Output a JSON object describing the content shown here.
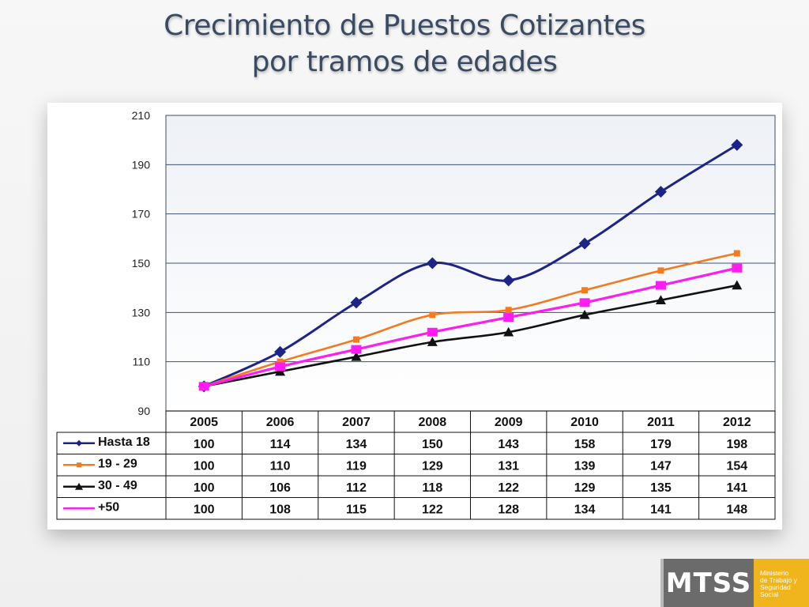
{
  "title": {
    "line1": "Crecimiento de Puestos Cotizantes",
    "line2": "por tramos de edades"
  },
  "chart_data": {
    "type": "line",
    "y_ticks": [
      "90",
      "110",
      "130",
      "150",
      "170",
      "190",
      "210"
    ],
    "ylim": [
      90,
      210
    ],
    "categories": [
      "2005",
      "2006",
      "2007",
      "2008",
      "2009",
      "2010",
      "2011",
      "2012"
    ],
    "grid": true,
    "legend": "data table below chart",
    "series": [
      {
        "name": "Hasta 18",
        "color": "#1c2585",
        "marker": "diamond",
        "values": [
          100,
          114,
          134,
          150,
          143,
          158,
          179,
          198
        ],
        "labels": [
          "100",
          "114",
          "134",
          "150",
          "143",
          "158",
          "179",
          "198"
        ]
      },
      {
        "name": "19 - 29",
        "color": "#f47a20",
        "marker": "square",
        "values": [
          100,
          110,
          119,
          129,
          131,
          139,
          147,
          154
        ],
        "labels": [
          "100",
          "110",
          "119",
          "129",
          "131",
          "139",
          "147",
          "154"
        ]
      },
      {
        "name": "30 - 49",
        "color": "#111111",
        "marker": "triangle",
        "values": [
          100,
          106,
          112,
          118,
          122,
          129,
          135,
          141
        ],
        "labels": [
          "100",
          "106",
          "112",
          "118",
          "122",
          "129",
          "135",
          "141"
        ]
      },
      {
        "name": "+50",
        "color": "#ff1cf0",
        "marker": "square",
        "values": [
          100,
          108,
          115,
          122,
          128,
          134,
          141,
          148
        ],
        "labels": [
          "100",
          "108",
          "115",
          "122",
          "128",
          "134",
          "141",
          "148"
        ]
      }
    ]
  },
  "logo": {
    "name": "MTSS",
    "subtitle": [
      "Ministerio",
      "de Trabajo y",
      "Seguridad",
      "Social"
    ],
    "colors": {
      "dark": "#6b6b6b",
      "accent": "#f0b51c"
    }
  }
}
